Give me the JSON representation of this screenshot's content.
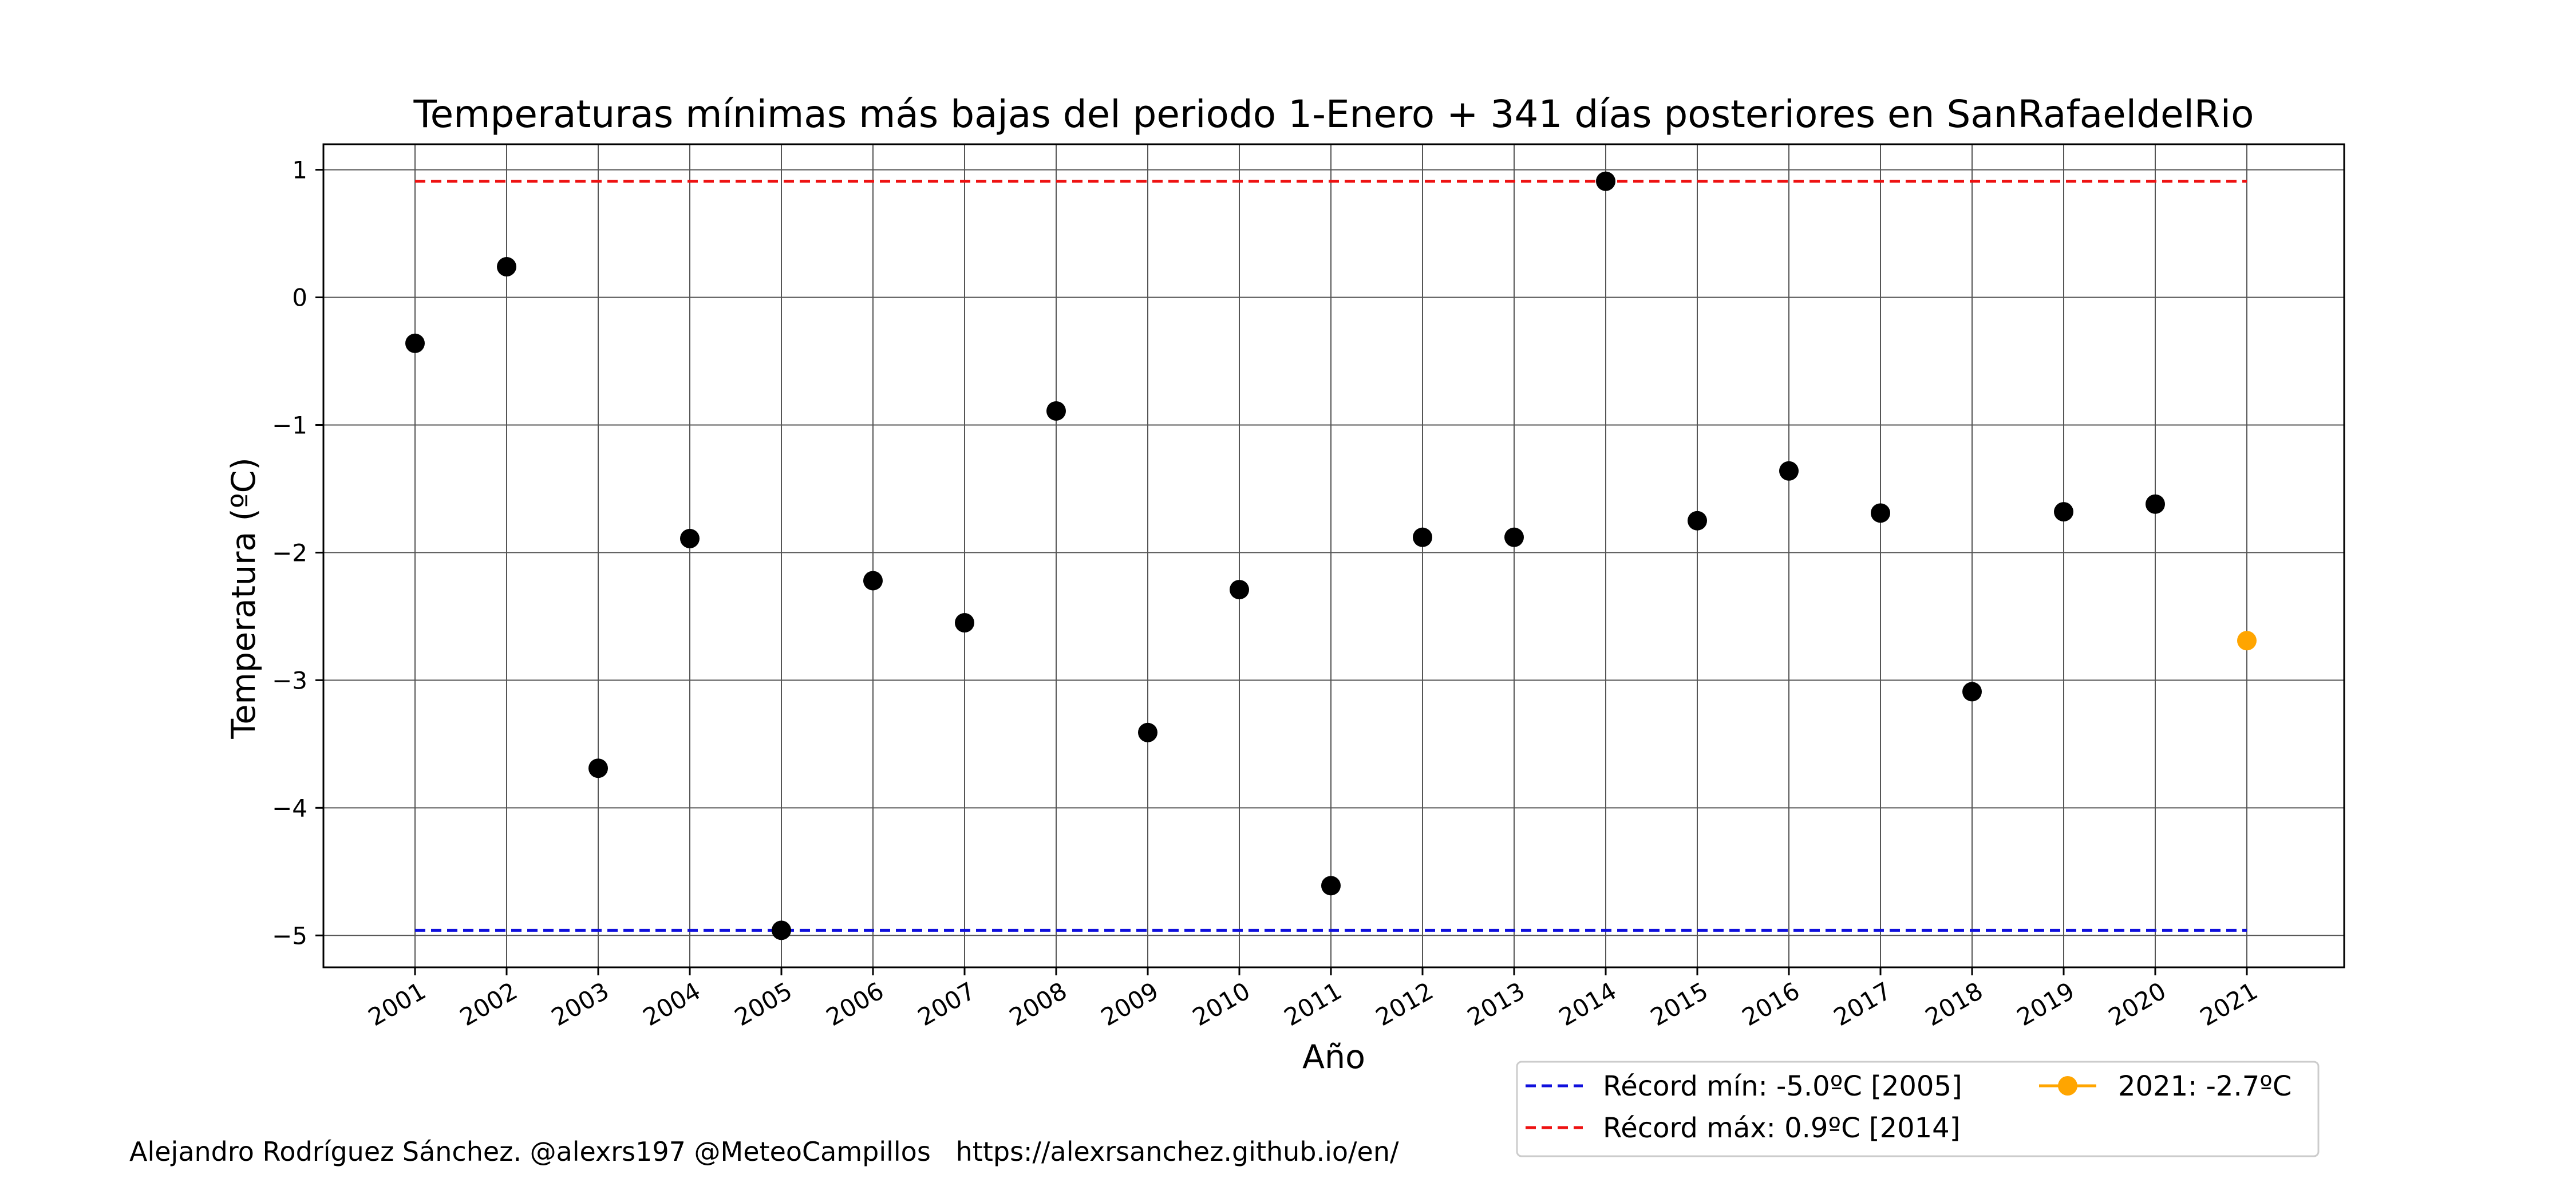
{
  "chart_data": {
    "type": "scatter",
    "title": "Temperaturas mínimas más bajas del periodo 1-Enero + 341 días posteriores en SanRafaeldelRio",
    "xlabel": "Año",
    "ylabel": "Temperatura (ºC)",
    "x": [
      "2001",
      "2002",
      "2003",
      "2004",
      "2005",
      "2006",
      "2007",
      "2008",
      "2009",
      "2010",
      "2011",
      "2012",
      "2013",
      "2014",
      "2015",
      "2016",
      "2017",
      "2018",
      "2019",
      "2020",
      "2021"
    ],
    "series": [
      {
        "values": [
          -0.36,
          0.24,
          -3.69,
          -1.89,
          -4.96,
          -2.22,
          -2.55,
          -0.89,
          -3.41,
          -2.29,
          -4.61,
          -1.88,
          -1.88,
          0.91,
          -1.75,
          -1.36,
          -1.69,
          -3.09,
          -1.68,
          -1.62
        ],
        "color": "#000000"
      },
      {
        "name": "2021: -2.7ºC",
        "x": [
          "2021"
        ],
        "values": [
          -2.69
        ],
        "color": "#FFA500"
      }
    ],
    "reference_lines": [
      {
        "name": "Récord mín: -5.0ºC [2005]",
        "value": -4.96,
        "color": "#1010DD",
        "style": "dashed"
      },
      {
        "name": "Récord máx: 0.9ºC [2014]",
        "value": 0.91,
        "color": "#EE1111",
        "style": "dashed"
      }
    ],
    "ylim": [
      -5.25,
      1.2
    ],
    "yticks": [
      1,
      0,
      -1,
      -2,
      -3,
      -4,
      -5
    ],
    "ytick_labels": [
      "1",
      "0",
      "−1",
      "−2",
      "−3",
      "−4",
      "−5"
    ],
    "grid": true,
    "legend_placement": "below-right"
  },
  "credit": "Alejandro Rodríguez Sánchez. @alexrs197 @MeteoCampillos   https://alexrsanchez.github.io/en/"
}
